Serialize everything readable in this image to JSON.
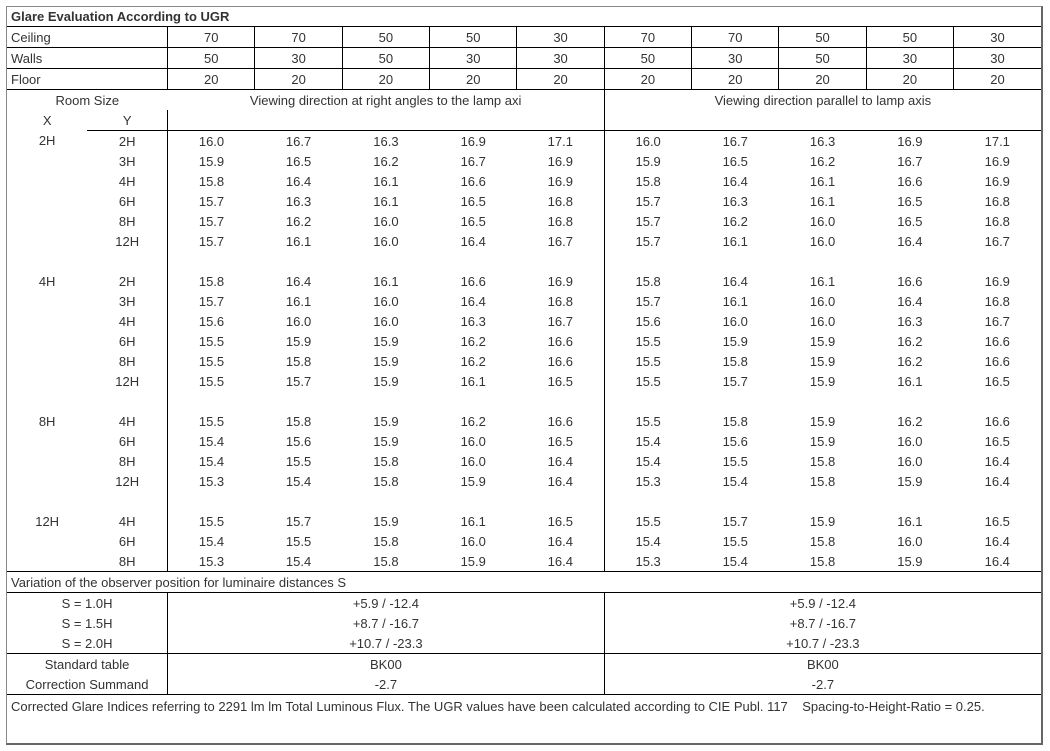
{
  "title": "Glare Evaluation According to UGR",
  "headerRows": {
    "ceiling": {
      "label": "Ceiling",
      "vals": [
        "70",
        "70",
        "50",
        "50",
        "30",
        "70",
        "70",
        "50",
        "50",
        "30"
      ]
    },
    "walls": {
      "label": "Walls",
      "vals": [
        "50",
        "30",
        "50",
        "30",
        "30",
        "50",
        "30",
        "50",
        "30",
        "30"
      ]
    },
    "floor": {
      "label": "Floor",
      "vals": [
        "20",
        "20",
        "20",
        "20",
        "20",
        "20",
        "20",
        "20",
        "20",
        "20"
      ]
    }
  },
  "roomSize": {
    "label": "Room Size",
    "x": "X",
    "y": "Y"
  },
  "dirRight": "Viewing direction at right angles to the lamp axi",
  "dirParallel": "Viewing direction parallel to lamp axis",
  "groups": [
    {
      "x": "2H",
      "rows": [
        {
          "y": "2H",
          "a": [
            "16.0",
            "16.7",
            "16.3",
            "16.9",
            "17.1"
          ],
          "b": [
            "16.0",
            "16.7",
            "16.3",
            "16.9",
            "17.1"
          ]
        },
        {
          "y": "3H",
          "a": [
            "15.9",
            "16.5",
            "16.2",
            "16.7",
            "16.9"
          ],
          "b": [
            "15.9",
            "16.5",
            "16.2",
            "16.7",
            "16.9"
          ]
        },
        {
          "y": "4H",
          "a": [
            "15.8",
            "16.4",
            "16.1",
            "16.6",
            "16.9"
          ],
          "b": [
            "15.8",
            "16.4",
            "16.1",
            "16.6",
            "16.9"
          ]
        },
        {
          "y": "6H",
          "a": [
            "15.7",
            "16.3",
            "16.1",
            "16.5",
            "16.8"
          ],
          "b": [
            "15.7",
            "16.3",
            "16.1",
            "16.5",
            "16.8"
          ]
        },
        {
          "y": "8H",
          "a": [
            "15.7",
            "16.2",
            "16.0",
            "16.5",
            "16.8"
          ],
          "b": [
            "15.7",
            "16.2",
            "16.0",
            "16.5",
            "16.8"
          ]
        },
        {
          "y": "12H",
          "a": [
            "15.7",
            "16.1",
            "16.0",
            "16.4",
            "16.7"
          ],
          "b": [
            "15.7",
            "16.1",
            "16.0",
            "16.4",
            "16.7"
          ]
        }
      ]
    },
    {
      "x": "4H",
      "rows": [
        {
          "y": "2H",
          "a": [
            "15.8",
            "16.4",
            "16.1",
            "16.6",
            "16.9"
          ],
          "b": [
            "15.8",
            "16.4",
            "16.1",
            "16.6",
            "16.9"
          ]
        },
        {
          "y": "3H",
          "a": [
            "15.7",
            "16.1",
            "16.0",
            "16.4",
            "16.8"
          ],
          "b": [
            "15.7",
            "16.1",
            "16.0",
            "16.4",
            "16.8"
          ]
        },
        {
          "y": "4H",
          "a": [
            "15.6",
            "16.0",
            "16.0",
            "16.3",
            "16.7"
          ],
          "b": [
            "15.6",
            "16.0",
            "16.0",
            "16.3",
            "16.7"
          ]
        },
        {
          "y": "6H",
          "a": [
            "15.5",
            "15.9",
            "15.9",
            "16.2",
            "16.6"
          ],
          "b": [
            "15.5",
            "15.9",
            "15.9",
            "16.2",
            "16.6"
          ]
        },
        {
          "y": "8H",
          "a": [
            "15.5",
            "15.8",
            "15.9",
            "16.2",
            "16.6"
          ],
          "b": [
            "15.5",
            "15.8",
            "15.9",
            "16.2",
            "16.6"
          ]
        },
        {
          "y": "12H",
          "a": [
            "15.5",
            "15.7",
            "15.9",
            "16.1",
            "16.5"
          ],
          "b": [
            "15.5",
            "15.7",
            "15.9",
            "16.1",
            "16.5"
          ]
        }
      ]
    },
    {
      "x": "8H",
      "rows": [
        {
          "y": "4H",
          "a": [
            "15.5",
            "15.8",
            "15.9",
            "16.2",
            "16.6"
          ],
          "b": [
            "15.5",
            "15.8",
            "15.9",
            "16.2",
            "16.6"
          ]
        },
        {
          "y": "6H",
          "a": [
            "15.4",
            "15.6",
            "15.9",
            "16.0",
            "16.5"
          ],
          "b": [
            "15.4",
            "15.6",
            "15.9",
            "16.0",
            "16.5"
          ]
        },
        {
          "y": "8H",
          "a": [
            "15.4",
            "15.5",
            "15.8",
            "16.0",
            "16.4"
          ],
          "b": [
            "15.4",
            "15.5",
            "15.8",
            "16.0",
            "16.4"
          ]
        },
        {
          "y": "12H",
          "a": [
            "15.3",
            "15.4",
            "15.8",
            "15.9",
            "16.4"
          ],
          "b": [
            "15.3",
            "15.4",
            "15.8",
            "15.9",
            "16.4"
          ]
        }
      ]
    },
    {
      "x": "12H",
      "rows": [
        {
          "y": "4H",
          "a": [
            "15.5",
            "15.7",
            "15.9",
            "16.1",
            "16.5"
          ],
          "b": [
            "15.5",
            "15.7",
            "15.9",
            "16.1",
            "16.5"
          ]
        },
        {
          "y": "6H",
          "a": [
            "15.4",
            "15.5",
            "15.8",
            "16.0",
            "16.4"
          ],
          "b": [
            "15.4",
            "15.5",
            "15.8",
            "16.0",
            "16.4"
          ]
        },
        {
          "y": "8H",
          "a": [
            "15.3",
            "15.4",
            "15.8",
            "15.9",
            "16.4"
          ],
          "b": [
            "15.3",
            "15.4",
            "15.8",
            "15.9",
            "16.4"
          ]
        }
      ]
    }
  ],
  "variationTitle": "Variation of the observer position for luminaire distances S",
  "variations": [
    {
      "s": "S = 1.0H",
      "a": "+5.9 / -12.4",
      "b": "+5.9 / -12.4"
    },
    {
      "s": "S = 1.5H",
      "a": "+8.7 / -16.7",
      "b": "+8.7 / -16.7"
    },
    {
      "s": "S = 2.0H",
      "a": "+10.7 / -23.3",
      "b": "+10.7 / -23.3"
    }
  ],
  "standardTable": {
    "label": "Standard table",
    "a": "BK00",
    "b": "BK00"
  },
  "correction": {
    "label": "Correction Summand",
    "a": "-2.7",
    "b": "-2.7"
  },
  "footnote": "Corrected Glare Indices referring to 2291 lm lm Total Luminous Flux. The UGR values have been calculated according to CIE Publ. 117    Spacing-to-Height-Ratio = 0.25."
}
